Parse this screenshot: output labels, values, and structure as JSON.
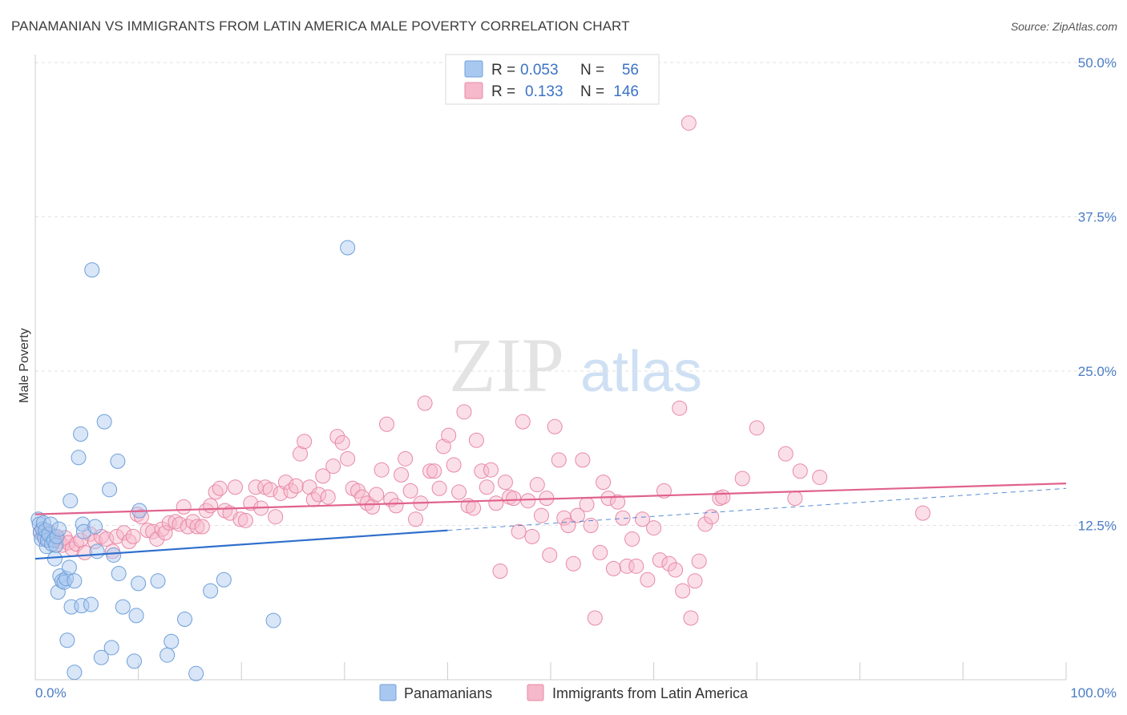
{
  "title": "PANAMANIAN VS IMMIGRANTS FROM LATIN AMERICA MALE POVERTY CORRELATION CHART",
  "source": "Source: ZipAtlas.com",
  "watermark": {
    "zip": "ZIP",
    "atlas": "atlas"
  },
  "legend": {
    "rows": [
      {
        "r_label": "R =",
        "r_value": "0.053",
        "n_label": "N =",
        "n_value": "56",
        "color": "#a9c8f0",
        "stroke": "#6f9fd8"
      },
      {
        "r_label": "R =",
        "r_value": "0.133",
        "n_label": "N =",
        "n_value": "146",
        "color": "#f6b8cb",
        "stroke": "#e889a6"
      }
    ]
  },
  "chart_data": {
    "type": "scatter",
    "ylabel": "Male Poverty",
    "xlim": [
      0,
      100
    ],
    "ylim": [
      0,
      50
    ],
    "y_ticks": [
      {
        "value": 12.5,
        "label": "12.5%"
      },
      {
        "value": 25.0,
        "label": "25.0%"
      },
      {
        "value": 37.5,
        "label": "37.5%"
      },
      {
        "value": 50.0,
        "label": "50.0%"
      }
    ],
    "x_tick_labels": {
      "left": "0.0%",
      "right": "100.0%"
    },
    "series": [
      {
        "name": "Panamanians",
        "color": "#a9c8f0",
        "stroke": "#6f9fd8",
        "line_color": "#2f6fcc",
        "trend": {
          "x0": 0,
          "y0": 9.8,
          "x1": 40,
          "y1": 12.1,
          "dash_to_x": 100,
          "dash_to_y": 15.5
        },
        "points": [
          [
            0.3,
            13.0
          ],
          [
            0.4,
            12.6
          ],
          [
            0.5,
            11.9
          ],
          [
            0.6,
            11.4
          ],
          [
            0.7,
            12.2
          ],
          [
            0.8,
            12.7
          ],
          [
            0.9,
            11.5
          ],
          [
            1.0,
            12.1
          ],
          [
            1.1,
            10.8
          ],
          [
            1.2,
            11.3
          ],
          [
            1.3,
            11.8
          ],
          [
            1.5,
            12.6
          ],
          [
            1.6,
            11.0
          ],
          [
            1.8,
            11.3
          ],
          [
            1.9,
            9.8
          ],
          [
            2.0,
            10.9
          ],
          [
            2.1,
            11.6
          ],
          [
            2.2,
            7.1
          ],
          [
            2.3,
            12.2
          ],
          [
            2.4,
            8.4
          ],
          [
            2.6,
            8.0
          ],
          [
            2.8,
            7.9
          ],
          [
            3.0,
            8.2
          ],
          [
            3.1,
            3.2
          ],
          [
            3.3,
            9.1
          ],
          [
            3.4,
            14.5
          ],
          [
            3.5,
            5.9
          ],
          [
            3.8,
            8.0
          ],
          [
            3.8,
            0.6
          ],
          [
            4.2,
            18.0
          ],
          [
            4.4,
            19.9
          ],
          [
            4.5,
            6.0
          ],
          [
            4.6,
            12.6
          ],
          [
            4.7,
            12.0
          ],
          [
            5.4,
            6.1
          ],
          [
            5.5,
            33.2
          ],
          [
            5.8,
            12.4
          ],
          [
            6.0,
            10.4
          ],
          [
            6.4,
            1.8
          ],
          [
            6.7,
            20.9
          ],
          [
            7.2,
            15.4
          ],
          [
            7.4,
            2.6
          ],
          [
            7.6,
            10.1
          ],
          [
            8.0,
            17.7
          ],
          [
            8.1,
            8.6
          ],
          [
            8.5,
            5.9
          ],
          [
            9.6,
            1.5
          ],
          [
            9.8,
            5.2
          ],
          [
            10.0,
            7.8
          ],
          [
            10.1,
            13.7
          ],
          [
            11.9,
            8.0
          ],
          [
            12.8,
            2.0
          ],
          [
            13.2,
            3.1
          ],
          [
            14.5,
            4.9
          ],
          [
            15.6,
            0.5
          ],
          [
            17.0,
            7.2
          ],
          [
            18.3,
            8.1
          ],
          [
            23.1,
            4.8
          ],
          [
            30.3,
            35.0
          ]
        ]
      },
      {
        "name": "Immigrants from Latin America",
        "color": "#f6b8cb",
        "stroke": "#e889a6",
        "line_color": "#e0628c",
        "trend": {
          "x0": 0,
          "y0": 13.4,
          "x1": 100,
          "y1": 15.9
        },
        "points": [
          [
            0.5,
            12.0
          ],
          [
            0.8,
            11.8
          ],
          [
            1.0,
            11.4
          ],
          [
            1.3,
            12.0
          ],
          [
            1.6,
            11.7
          ],
          [
            2.0,
            11.5
          ],
          [
            2.3,
            11.2
          ],
          [
            2.6,
            10.9
          ],
          [
            2.9,
            11.5
          ],
          [
            3.2,
            11.1
          ],
          [
            3.6,
            10.6
          ],
          [
            4.0,
            11.0
          ],
          [
            4.4,
            11.3
          ],
          [
            4.8,
            10.3
          ],
          [
            5.3,
            11.8
          ],
          [
            5.8,
            11.2
          ],
          [
            6.4,
            11.6
          ],
          [
            6.9,
            11.4
          ],
          [
            7.5,
            10.4
          ],
          [
            7.9,
            11.6
          ],
          [
            8.6,
            11.9
          ],
          [
            9.1,
            11.2
          ],
          [
            9.5,
            11.6
          ],
          [
            9.9,
            13.4
          ],
          [
            10.3,
            13.2
          ],
          [
            10.9,
            12.1
          ],
          [
            11.4,
            12.0
          ],
          [
            11.8,
            11.4
          ],
          [
            12.3,
            12.2
          ],
          [
            12.6,
            11.9
          ],
          [
            13.0,
            12.7
          ],
          [
            13.6,
            12.8
          ],
          [
            14.0,
            12.6
          ],
          [
            14.4,
            14.0
          ],
          [
            14.8,
            12.4
          ],
          [
            15.3,
            12.8
          ],
          [
            15.7,
            12.4
          ],
          [
            16.2,
            12.4
          ],
          [
            16.6,
            13.7
          ],
          [
            17.0,
            14.1
          ],
          [
            17.5,
            15.2
          ],
          [
            17.9,
            15.5
          ],
          [
            18.4,
            13.7
          ],
          [
            18.9,
            13.5
          ],
          [
            19.4,
            15.6
          ],
          [
            19.9,
            13.0
          ],
          [
            20.4,
            12.9
          ],
          [
            20.9,
            14.3
          ],
          [
            21.4,
            15.6
          ],
          [
            21.9,
            13.9
          ],
          [
            22.3,
            15.6
          ],
          [
            22.8,
            15.4
          ],
          [
            23.3,
            13.2
          ],
          [
            23.8,
            15.1
          ],
          [
            24.3,
            16.0
          ],
          [
            24.8,
            15.3
          ],
          [
            25.3,
            15.7
          ],
          [
            25.7,
            18.3
          ],
          [
            26.1,
            19.3
          ],
          [
            26.6,
            15.6
          ],
          [
            27.0,
            14.6
          ],
          [
            27.5,
            15.0
          ],
          [
            27.9,
            16.5
          ],
          [
            28.4,
            14.8
          ],
          [
            28.9,
            17.3
          ],
          [
            29.3,
            19.7
          ],
          [
            29.8,
            19.2
          ],
          [
            30.3,
            17.9
          ],
          [
            30.8,
            15.5
          ],
          [
            31.3,
            15.3
          ],
          [
            31.7,
            14.8
          ],
          [
            32.2,
            14.3
          ],
          [
            32.7,
            14.0
          ],
          [
            33.1,
            15.0
          ],
          [
            33.6,
            17.0
          ],
          [
            34.1,
            20.7
          ],
          [
            34.5,
            14.6
          ],
          [
            35.0,
            14.1
          ],
          [
            35.5,
            16.6
          ],
          [
            35.9,
            17.9
          ],
          [
            36.4,
            15.3
          ],
          [
            36.9,
            13.0
          ],
          [
            37.4,
            14.3
          ],
          [
            37.8,
            22.4
          ],
          [
            38.3,
            16.9
          ],
          [
            38.7,
            16.9
          ],
          [
            39.2,
            15.5
          ],
          [
            39.6,
            18.9
          ],
          [
            40.1,
            19.8
          ],
          [
            40.6,
            17.4
          ],
          [
            41.1,
            15.2
          ],
          [
            41.6,
            21.7
          ],
          [
            42.0,
            14.1
          ],
          [
            42.5,
            13.9
          ],
          [
            42.8,
            19.4
          ],
          [
            43.3,
            16.9
          ],
          [
            43.8,
            15.6
          ],
          [
            44.2,
            17.0
          ],
          [
            44.7,
            14.3
          ],
          [
            45.1,
            8.8
          ],
          [
            45.6,
            16.0
          ],
          [
            46.0,
            14.8
          ],
          [
            46.4,
            14.7
          ],
          [
            46.9,
            12.0
          ],
          [
            47.3,
            20.9
          ],
          [
            47.8,
            14.5
          ],
          [
            48.2,
            11.6
          ],
          [
            48.7,
            15.8
          ],
          [
            49.1,
            13.3
          ],
          [
            49.6,
            14.7
          ],
          [
            49.9,
            10.1
          ],
          [
            50.4,
            20.5
          ],
          [
            50.8,
            17.8
          ],
          [
            51.3,
            13.1
          ],
          [
            51.7,
            12.5
          ],
          [
            52.2,
            9.4
          ],
          [
            52.6,
            13.3
          ],
          [
            53.1,
            17.8
          ],
          [
            53.5,
            14.2
          ],
          [
            53.9,
            12.5
          ],
          [
            54.3,
            5.0
          ],
          [
            54.8,
            10.3
          ],
          [
            55.1,
            16.0
          ],
          [
            55.6,
            14.7
          ],
          [
            56.1,
            9.0
          ],
          [
            56.5,
            14.4
          ],
          [
            57.0,
            13.1
          ],
          [
            57.4,
            9.2
          ],
          [
            57.9,
            11.4
          ],
          [
            58.3,
            9.2
          ],
          [
            58.9,
            13.0
          ],
          [
            59.4,
            8.1
          ],
          [
            60.0,
            12.3
          ],
          [
            60.6,
            9.7
          ],
          [
            61.0,
            15.3
          ],
          [
            61.5,
            9.4
          ],
          [
            62.1,
            8.9
          ],
          [
            62.5,
            22.0
          ],
          [
            62.8,
            7.2
          ],
          [
            63.6,
            5.0
          ],
          [
            64.0,
            8.0
          ],
          [
            64.4,
            9.6
          ],
          [
            65.0,
            12.6
          ],
          [
            65.6,
            13.2
          ],
          [
            66.4,
            14.7
          ],
          [
            66.7,
            14.8
          ],
          [
            68.6,
            16.3
          ],
          [
            70.0,
            20.4
          ],
          [
            72.8,
            18.3
          ],
          [
            73.7,
            14.7
          ],
          [
            74.2,
            16.9
          ],
          [
            76.1,
            16.4
          ],
          [
            86.1,
            13.5
          ],
          [
            63.4,
            45.1
          ]
        ]
      }
    ]
  },
  "bottom_legend": [
    {
      "label": "Panamanians"
    },
    {
      "label": "Immigrants from Latin America"
    }
  ]
}
